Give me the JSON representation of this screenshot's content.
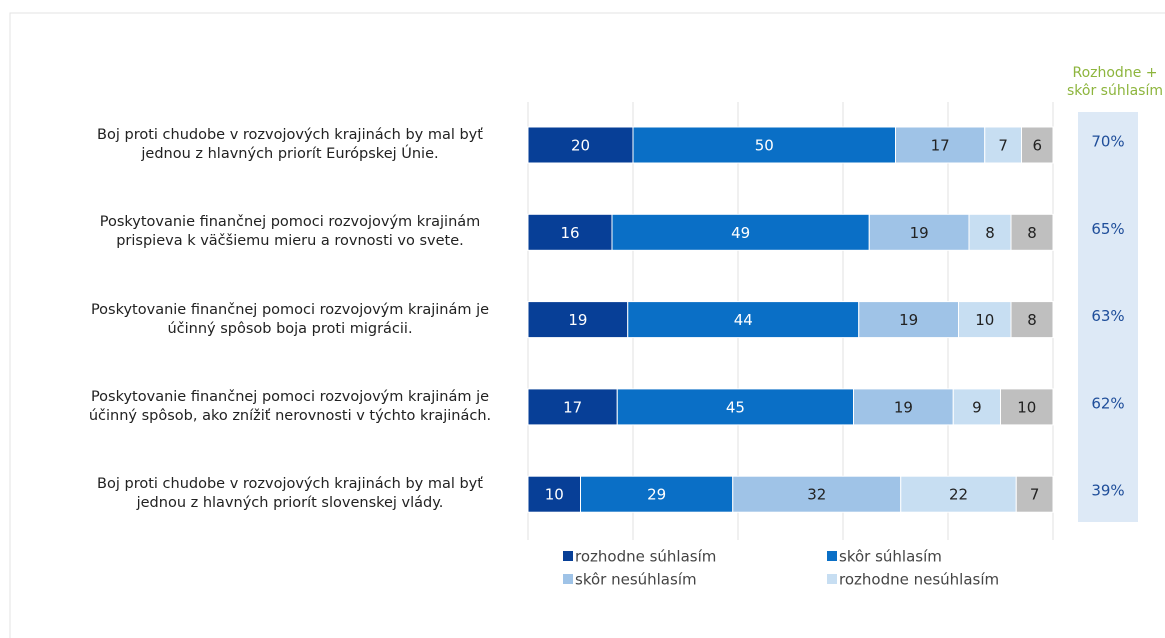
{
  "chart_data": {
    "type": "stacked-bar-horizontal",
    "categories": [
      "Boj proti chudobe v rozvojových krajinách by mal byť\njednou  z hlavných priorít Európskej Únie.",
      "Poskytovanie finančnej pomoci rozvojovým krajinám\nprispieva k väčšiemu mieru a rovnosti vo svete.",
      "Poskytovanie finančnej pomoci rozvojovým krajinám je\núčinný spôsob boja proti migrácii.",
      "Poskytovanie finančnej pomoci rozvojovým krajinám je\núčinný spôsob, ako znížiť nerovnosti v týchto krajinách.",
      "Boj proti chudobe v rozvojových krajinách by mal byť\njednou  z hlavných priorít slovenskej vlády."
    ],
    "series": [
      {
        "name": "rozhodne súhlasím",
        "color": "#073f97",
        "values": [
          20,
          16,
          19,
          17,
          10
        ]
      },
      {
        "name": "skôr súhlasím",
        "color": "#0a6fc6",
        "values": [
          50,
          49,
          44,
          45,
          29
        ]
      },
      {
        "name": "skôr nesúhlasím",
        "color": "#9fc3e7",
        "values": [
          17,
          19,
          19,
          19,
          32
        ]
      },
      {
        "name": "rozhodne nesúhlasím",
        "color": "#c7def2",
        "values": [
          7,
          8,
          10,
          9,
          22
        ]
      },
      {
        "color": "#bfbfbf",
        "values": [
          6,
          8,
          8,
          10,
          7
        ]
      }
    ],
    "xlim": [
      0,
      100
    ],
    "xticks": [
      0,
      20,
      40,
      60,
      80,
      100
    ],
    "grid": true,
    "summary": {
      "title": "Rozhodne +\nskôr súhlasím",
      "color": "#8db53d",
      "values": [
        70,
        65,
        63,
        62,
        39
      ],
      "value_labels": [
        "70%",
        "65%",
        "63%",
        "62%",
        "39%"
      ]
    }
  }
}
